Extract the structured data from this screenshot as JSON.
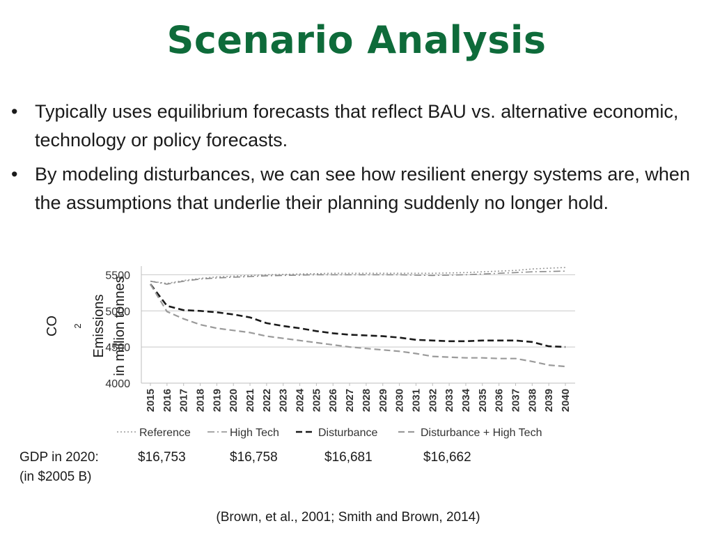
{
  "slide": {
    "title": "Scenario Analysis",
    "bullets": [
      "Typically uses equilibrium forecasts that reflect BAU vs.  alternative economic, technology or policy forecasts.",
      "By modeling disturbances, we can see how resilient energy systems are, when the assumptions that underlie their planning suddenly no longer hold."
    ],
    "bullet_glyph": "•",
    "ylabel_line1_prefix": "CO",
    "ylabel_line1_sub": "2",
    "ylabel_line1_suffix": " Emissions",
    "ylabel_line2": "in million tonnes",
    "gdp_label": "GDP in 2020:",
    "gdp_unit": "(in $2005 B)",
    "gdp_values": [
      "$16,753",
      "$16,758",
      "$16,681",
      "$16,662"
    ],
    "citation": "(Brown, et al., 2001; Smith and Brown, 2014)"
  },
  "chart_data": {
    "type": "line",
    "ylim": [
      4000,
      5600
    ],
    "yticks": [
      4000,
      4500,
      5000,
      5500
    ],
    "grid": true,
    "legend_position": "bottom",
    "x": [
      "2015",
      "2016",
      "2017",
      "2018",
      "2019",
      "2020",
      "2021",
      "2022",
      "2023",
      "2024",
      "2025",
      "2026",
      "2027",
      "2028",
      "2029",
      "2030",
      "2031",
      "2032",
      "2033",
      "2034",
      "2035",
      "2036",
      "2037",
      "2038",
      "2039",
      "2040"
    ],
    "series": [
      {
        "name": "Reference",
        "style": "dotted",
        "color": "#9a9a9a",
        "values": [
          5410,
          5380,
          5420,
          5450,
          5470,
          5480,
          5490,
          5500,
          5505,
          5510,
          5515,
          5520,
          5520,
          5520,
          5520,
          5520,
          5520,
          5520,
          5525,
          5530,
          5540,
          5550,
          5560,
          5580,
          5590,
          5600
        ]
      },
      {
        "name": "High Tech",
        "style": "dashdot",
        "color": "#8a8a8a",
        "values": [
          5410,
          5370,
          5410,
          5440,
          5455,
          5465,
          5475,
          5485,
          5490,
          5495,
          5500,
          5500,
          5500,
          5500,
          5500,
          5500,
          5495,
          5490,
          5495,
          5500,
          5510,
          5520,
          5530,
          5540,
          5545,
          5550
        ]
      },
      {
        "name": "Disturbance",
        "style": "dashed",
        "color": "#1a1a1a",
        "values": [
          5370,
          5070,
          5010,
          5000,
          4980,
          4950,
          4910,
          4830,
          4790,
          4760,
          4720,
          4690,
          4670,
          4660,
          4650,
          4630,
          4600,
          4590,
          4580,
          4580,
          4590,
          4590,
          4590,
          4570,
          4510,
          4500
        ]
      },
      {
        "name": "Disturbance + High Tech",
        "style": "dashed",
        "color": "#9a9a9a",
        "values": [
          5370,
          4990,
          4890,
          4810,
          4760,
          4730,
          4700,
          4650,
          4620,
          4590,
          4560,
          4530,
          4500,
          4480,
          4460,
          4440,
          4410,
          4370,
          4360,
          4350,
          4350,
          4340,
          4340,
          4300,
          4250,
          4230
        ]
      }
    ]
  }
}
